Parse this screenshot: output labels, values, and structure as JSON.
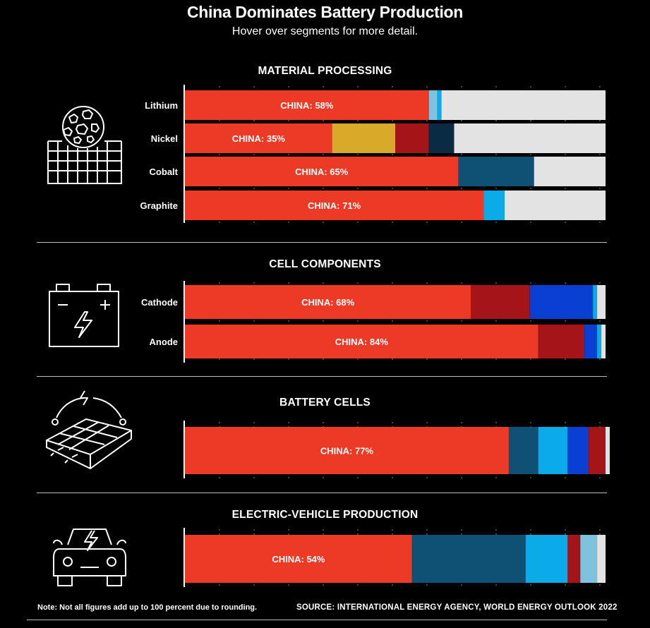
{
  "header": {
    "title": "China Dominates Battery Production",
    "subtitle": "Hover over segments for more detail."
  },
  "sections": [
    {
      "title": "MATERIAL PROCESSING",
      "icon": "globe-ore-icon"
    },
    {
      "title": "CELL COMPONENTS",
      "icon": "car-battery-icon"
    },
    {
      "title": "BATTERY CELLS",
      "icon": "battery-cells-icon"
    },
    {
      "title": "ELECTRIC-VEHICLE PRODUCTION",
      "icon": "electric-car-icon"
    }
  ],
  "footer": {
    "note": "Note: Not all figures add up to 100 percent due to rounding.",
    "source": "SOURCE: INTERNATIONAL ENERGY AGENCY, WORLD ENERGY OUTLOOK 2022"
  },
  "colors": {
    "china": "#ec3a26",
    "gold": "#d9a929",
    "dark_red": "#a41419",
    "navy": "#0b2a44",
    "steel_blue": "#0f5075",
    "bright_blue": "#0babe9",
    "royal_blue": "#0a3fd4",
    "light_blue": "#7ec2e0",
    "other": "#e3e3e3"
  },
  "chart_data": [
    {
      "type": "bar",
      "orientation": "horizontal",
      "stacked": true,
      "section": "MATERIAL PROCESSING",
      "xlim": [
        0,
        100
      ],
      "rows": [
        {
          "label": "Lithium",
          "china_label": "CHINA: 58%",
          "segments": [
            {
              "color": "china",
              "value": 58
            },
            {
              "color": "light_blue",
              "value": 2
            },
            {
              "color": "bright_blue",
              "value": 1
            },
            {
              "color": "other",
              "value": 39
            }
          ]
        },
        {
          "label": "Nickel",
          "china_label": "CHINA: 35%",
          "segments": [
            {
              "color": "china",
              "value": 35
            },
            {
              "color": "gold",
              "value": 15
            },
            {
              "color": "dark_red",
              "value": 8
            },
            {
              "color": "navy",
              "value": 6
            },
            {
              "color": "other",
              "value": 36
            }
          ]
        },
        {
          "label": "Cobalt",
          "china_label": "CHINA: 65%",
          "segments": [
            {
              "color": "china",
              "value": 65
            },
            {
              "color": "steel_blue",
              "value": 18
            },
            {
              "color": "other",
              "value": 17
            }
          ]
        },
        {
          "label": "Graphite",
          "china_label": "CHINA: 71%",
          "segments": [
            {
              "color": "china",
              "value": 71
            },
            {
              "color": "bright_blue",
              "value": 5
            },
            {
              "color": "other",
              "value": 24
            }
          ]
        }
      ]
    },
    {
      "type": "bar",
      "orientation": "horizontal",
      "stacked": true,
      "section": "CELL COMPONENTS",
      "xlim": [
        0,
        100
      ],
      "rows": [
        {
          "label": "Cathode",
          "china_label": "CHINA: 68%",
          "segments": [
            {
              "color": "china",
              "value": 68
            },
            {
              "color": "dark_red",
              "value": 14
            },
            {
              "color": "royal_blue",
              "value": 15
            },
            {
              "color": "bright_blue",
              "value": 1
            },
            {
              "color": "other",
              "value": 2
            }
          ]
        },
        {
          "label": "Anode",
          "china_label": "CHINA: 84%",
          "segments": [
            {
              "color": "china",
              "value": 84
            },
            {
              "color": "dark_red",
              "value": 11
            },
            {
              "color": "royal_blue",
              "value": 3
            },
            {
              "color": "bright_blue",
              "value": 1
            },
            {
              "color": "other",
              "value": 1
            }
          ]
        }
      ]
    },
    {
      "type": "bar",
      "orientation": "horizontal",
      "stacked": true,
      "section": "BATTERY CELLS",
      "xlim": [
        0,
        100
      ],
      "rows": [
        {
          "label": "",
          "china_label": "CHINA: 77%",
          "segments": [
            {
              "color": "china",
              "value": 77
            },
            {
              "color": "steel_blue",
              "value": 7
            },
            {
              "color": "bright_blue",
              "value": 7
            },
            {
              "color": "royal_blue",
              "value": 5
            },
            {
              "color": "dark_red",
              "value": 4
            },
            {
              "color": "other",
              "value": 1
            }
          ]
        }
      ]
    },
    {
      "type": "bar",
      "orientation": "horizontal",
      "stacked": true,
      "section": "ELECTRIC-VEHICLE PRODUCTION",
      "xlim": [
        0,
        100
      ],
      "rows": [
        {
          "label": "",
          "china_label": "CHINA: 54%",
          "segments": [
            {
              "color": "china",
              "value": 54
            },
            {
              "color": "steel_blue",
              "value": 27
            },
            {
              "color": "bright_blue",
              "value": 10
            },
            {
              "color": "dark_red",
              "value": 3
            },
            {
              "color": "light_blue",
              "value": 4
            },
            {
              "color": "other",
              "value": 2
            }
          ]
        }
      ]
    }
  ]
}
